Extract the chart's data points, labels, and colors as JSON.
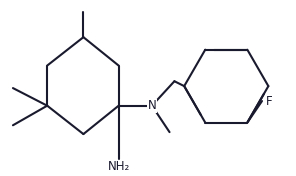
{
  "bg_color": "#ffffff",
  "line_color": "#1a1a2e",
  "line_width": 1.5,
  "text_color": "#1a1a2e",
  "font_size": 8.5,
  "xlim": [
    0,
    296
  ],
  "ylim": [
    0,
    176
  ]
}
